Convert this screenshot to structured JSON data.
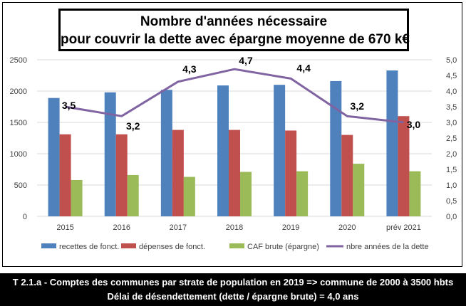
{
  "title": {
    "line1": "Nombre d'années nécessaire",
    "line2": "pour couvrir la dette avec épargne moyenne de 670 k€"
  },
  "footer": {
    "line1": "T 2.1.a - Comptes des communes par strate de population en 2019 => commune de 2000 à 3500 hbts",
    "line2": "Délai de désendettement (dette / épargne brute) = 4,0 ans"
  },
  "colors": {
    "recettes": "#4f81bd",
    "depenses": "#c0504d",
    "caf": "#9bbb59",
    "annees": "#8064a2",
    "grid": "#d9d9d9"
  },
  "chart_data": {
    "type": "bar",
    "categories": [
      "2015",
      "2016",
      "2017",
      "2018",
      "2019",
      "2020",
      "prév 2021"
    ],
    "series": [
      {
        "name": "recettes de fonct.",
        "type": "bar",
        "axis": "left",
        "values": [
          1890,
          1980,
          2020,
          2090,
          2100,
          2160,
          2330
        ]
      },
      {
        "name": "dépenses de fonct.",
        "type": "bar",
        "axis": "left",
        "values": [
          1310,
          1310,
          1380,
          1380,
          1370,
          1300,
          1600
        ]
      },
      {
        "name": "CAF brute (épargne)",
        "type": "bar",
        "axis": "left",
        "values": [
          580,
          660,
          630,
          710,
          720,
          840,
          720
        ]
      },
      {
        "name": "nbre années de la dette",
        "type": "line",
        "axis": "right",
        "values": [
          3.5,
          3.2,
          4.3,
          4.7,
          4.4,
          3.2,
          3.0
        ],
        "labels": [
          "3,5",
          "3,2",
          "4,3",
          "4,7",
          "4,4",
          "3,2",
          "3,0"
        ]
      }
    ],
    "y_left": {
      "ylim": [
        0,
        2500
      ],
      "ticks": [
        "0",
        "500",
        "1000",
        "1500",
        "2000",
        "2500"
      ]
    },
    "y_right": {
      "ylim": [
        0,
        5
      ],
      "ticks": [
        "0,0",
        "0,5",
        "1,0",
        "1,5",
        "2,0",
        "2,5",
        "3,0",
        "3,5",
        "4,0",
        "4,5",
        "5,0"
      ]
    },
    "grid": true,
    "legend": "bottom"
  }
}
